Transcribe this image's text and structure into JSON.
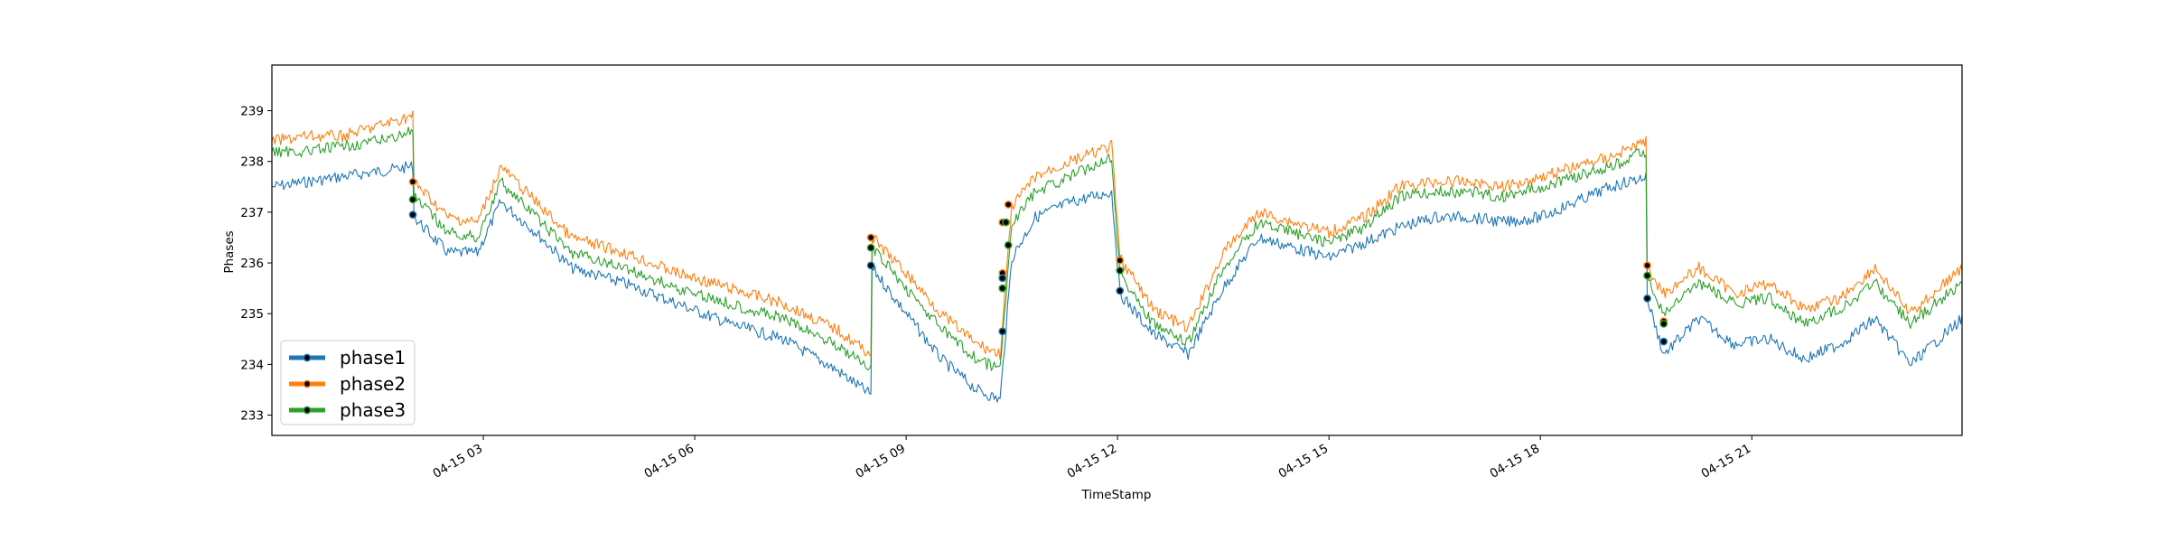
{
  "chart_data": {
    "type": "line",
    "title": "",
    "xlabel": "TimeStamp",
    "ylabel": "Phases",
    "xlim": [
      "04-15 00:00",
      "04-15 23:59"
    ],
    "ylim": [
      232.6,
      239.9
    ],
    "x_ticks": [
      "04-15 03",
      "04-15 06",
      "04-15 09",
      "04-15 12",
      "04-15 15",
      "04-15 18",
      "04-15 21"
    ],
    "y_ticks": [
      233,
      234,
      235,
      236,
      237,
      238,
      239
    ],
    "grid": false,
    "legend_position": "bottom-left",
    "colors": {
      "phase1": "#1f77b4",
      "phase2": "#ff7f0e",
      "phase3": "#2ca02c",
      "marker": "#000000"
    },
    "series": [
      {
        "name": "phase1",
        "x": [
          "04-15 00:00",
          "04-15 00:30",
          "04-15 01:00",
          "04-15 01:30",
          "04-15 02:00",
          "04-15 02:01",
          "04-15 02:30",
          "04-15 02:55",
          "04-15 03:15",
          "04-15 03:45",
          "04-15 04:15",
          "04-15 05:00",
          "04-15 05:45",
          "04-15 06:30",
          "04-15 07:15",
          "04-15 08:00",
          "04-15 08:30",
          "04-15 08:31",
          "04-15 09:00",
          "04-15 09:30",
          "04-15 10:00",
          "04-15 10:20",
          "04-15 10:30",
          "04-15 10:50",
          "04-15 11:20",
          "04-15 11:55",
          "04-15 12:02",
          "04-15 12:30",
          "04-15 13:00",
          "04-15 13:30",
          "04-15 14:00",
          "04-15 14:30",
          "04-15 15:00",
          "04-15 15:30",
          "04-15 16:00",
          "04-15 16:30",
          "04-15 17:00",
          "04-15 17:30",
          "04-15 18:00",
          "04-15 18:30",
          "04-15 19:00",
          "04-15 19:30",
          "04-15 19:31",
          "04-15 19:45",
          "04-15 20:15",
          "04-15 20:45",
          "04-15 21:15",
          "04-15 21:45",
          "04-15 22:15",
          "04-15 22:45",
          "04-15 23:15",
          "04-15 23:59"
        ],
        "y": [
          237.5,
          237.6,
          237.7,
          237.8,
          237.9,
          236.9,
          236.2,
          236.2,
          237.2,
          236.6,
          235.9,
          235.6,
          235.2,
          234.8,
          234.5,
          233.9,
          233.4,
          235.9,
          235.0,
          234.1,
          233.5,
          233.3,
          236.1,
          236.9,
          237.2,
          237.4,
          235.4,
          234.6,
          234.2,
          235.5,
          236.5,
          236.3,
          236.1,
          236.4,
          236.7,
          236.9,
          236.9,
          236.8,
          236.9,
          237.2,
          237.5,
          237.7,
          235.3,
          234.2,
          234.9,
          234.4,
          234.5,
          234.1,
          234.4,
          234.9,
          234.0,
          234.9
        ]
      },
      {
        "name": "phase2",
        "x": [
          "04-15 00:00",
          "04-15 00:30",
          "04-15 01:00",
          "04-15 01:30",
          "04-15 02:00",
          "04-15 02:01",
          "04-15 02:30",
          "04-15 02:55",
          "04-15 03:15",
          "04-15 03:45",
          "04-15 04:15",
          "04-15 05:00",
          "04-15 05:45",
          "04-15 06:30",
          "04-15 07:15",
          "04-15 08:00",
          "04-15 08:30",
          "04-15 08:31",
          "04-15 09:00",
          "04-15 09:30",
          "04-15 10:00",
          "04-15 10:20",
          "04-15 10:30",
          "04-15 10:50",
          "04-15 11:20",
          "04-15 11:55",
          "04-15 12:02",
          "04-15 12:30",
          "04-15 13:00",
          "04-15 13:30",
          "04-15 14:00",
          "04-15 14:30",
          "04-15 15:00",
          "04-15 15:30",
          "04-15 16:00",
          "04-15 16:30",
          "04-15 17:00",
          "04-15 17:30",
          "04-15 18:00",
          "04-15 18:30",
          "04-15 19:00",
          "04-15 19:30",
          "04-15 19:31",
          "04-15 19:45",
          "04-15 20:15",
          "04-15 20:45",
          "04-15 21:15",
          "04-15 21:45",
          "04-15 22:15",
          "04-15 22:45",
          "04-15 23:15",
          "04-15 23:59"
        ],
        "y": [
          238.4,
          238.5,
          238.5,
          238.7,
          238.9,
          237.6,
          236.9,
          236.8,
          237.9,
          237.2,
          236.5,
          236.2,
          235.8,
          235.5,
          235.2,
          234.7,
          234.2,
          236.5,
          235.8,
          235.0,
          234.4,
          234.2,
          237.1,
          237.7,
          238.0,
          238.3,
          236.1,
          235.1,
          234.7,
          236.2,
          237.0,
          236.8,
          236.6,
          236.9,
          237.5,
          237.6,
          237.6,
          237.5,
          237.7,
          237.9,
          238.1,
          238.4,
          235.9,
          235.4,
          235.9,
          235.4,
          235.6,
          235.1,
          235.3,
          235.9,
          235.0,
          235.9
        ]
      },
      {
        "name": "phase3",
        "x": [
          "04-15 00:00",
          "04-15 00:30",
          "04-15 01:00",
          "04-15 01:30",
          "04-15 02:00",
          "04-15 02:01",
          "04-15 02:30",
          "04-15 02:55",
          "04-15 03:15",
          "04-15 03:45",
          "04-15 04:15",
          "04-15 05:00",
          "04-15 05:45",
          "04-15 06:30",
          "04-15 07:15",
          "04-15 08:00",
          "04-15 08:30",
          "04-15 08:31",
          "04-15 09:00",
          "04-15 09:30",
          "04-15 10:00",
          "04-15 10:20",
          "04-15 10:30",
          "04-15 10:50",
          "04-15 11:20",
          "04-15 11:55",
          "04-15 12:02",
          "04-15 12:30",
          "04-15 13:00",
          "04-15 13:30",
          "04-15 14:00",
          "04-15 14:30",
          "04-15 15:00",
          "04-15 15:30",
          "04-15 16:00",
          "04-15 16:30",
          "04-15 17:00",
          "04-15 17:30",
          "04-15 18:00",
          "04-15 18:30",
          "04-15 19:00",
          "04-15 19:30",
          "04-15 19:31",
          "04-15 19:45",
          "04-15 20:15",
          "04-15 20:45",
          "04-15 21:15",
          "04-15 21:45",
          "04-15 22:15",
          "04-15 22:45",
          "04-15 23:15",
          "04-15 23:59"
        ],
        "y": [
          238.2,
          238.2,
          238.3,
          238.4,
          238.6,
          237.3,
          236.6,
          236.5,
          237.6,
          236.9,
          236.2,
          235.9,
          235.5,
          235.2,
          234.9,
          234.4,
          233.9,
          236.3,
          235.5,
          234.7,
          234.1,
          233.9,
          236.8,
          237.4,
          237.7,
          238.1,
          235.8,
          234.8,
          234.4,
          235.9,
          236.8,
          236.6,
          236.4,
          236.7,
          237.3,
          237.4,
          237.4,
          237.3,
          237.5,
          237.7,
          237.9,
          238.2,
          235.7,
          235.0,
          235.6,
          235.2,
          235.3,
          234.8,
          235.1,
          235.6,
          234.8,
          235.6
        ]
      }
    ],
    "markers": [
      {
        "x": "04-15 02:00",
        "y": 237.6,
        "series": "phase2"
      },
      {
        "x": "04-15 02:00",
        "y": 237.25,
        "series": "phase3"
      },
      {
        "x": "04-15 02:00",
        "y": 236.95,
        "series": "phase1"
      },
      {
        "x": "04-15 08:30",
        "y": 236.5,
        "series": "phase2"
      },
      {
        "x": "04-15 08:30",
        "y": 236.3,
        "series": "phase3"
      },
      {
        "x": "04-15 08:30",
        "y": 235.95,
        "series": "phase1"
      },
      {
        "x": "04-15 10:22",
        "y": 236.8,
        "series": "phase2"
      },
      {
        "x": "04-15 10:25",
        "y": 236.8,
        "series": "phase3"
      },
      {
        "x": "04-15 10:27",
        "y": 237.15,
        "series": "phase2"
      },
      {
        "x": "04-15 10:27",
        "y": 236.35,
        "series": "phase3"
      },
      {
        "x": "04-15 10:22",
        "y": 235.8,
        "series": "phase2"
      },
      {
        "x": "04-15 10:22",
        "y": 235.7,
        "series": "phase1"
      },
      {
        "x": "04-15 10:22",
        "y": 235.5,
        "series": "phase3"
      },
      {
        "x": "04-15 10:22",
        "y": 234.65,
        "series": "phase1"
      },
      {
        "x": "04-15 12:02",
        "y": 236.05,
        "series": "phase2"
      },
      {
        "x": "04-15 12:02",
        "y": 235.85,
        "series": "phase3"
      },
      {
        "x": "04-15 12:02",
        "y": 235.45,
        "series": "phase1"
      },
      {
        "x": "04-15 19:31",
        "y": 235.95,
        "series": "phase2"
      },
      {
        "x": "04-15 19:31",
        "y": 235.75,
        "series": "phase3"
      },
      {
        "x": "04-15 19:31",
        "y": 235.3,
        "series": "phase1"
      },
      {
        "x": "04-15 19:45",
        "y": 234.85,
        "series": "phase2"
      },
      {
        "x": "04-15 19:45",
        "y": 234.8,
        "series": "phase3"
      },
      {
        "x": "04-15 19:45",
        "y": 234.45,
        "series": "phase1"
      }
    ]
  }
}
